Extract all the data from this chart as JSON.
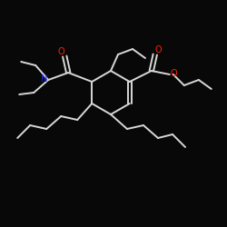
{
  "background": "#080808",
  "bond_color": "#d8d8d8",
  "atom_O": "#ff2000",
  "atom_N": "#2222ee",
  "lw": 1.4,
  "figsize": [
    2.5,
    2.5
  ],
  "dpi": 100,
  "xlim": [
    0,
    250
  ],
  "ylim": [
    0,
    250
  ]
}
